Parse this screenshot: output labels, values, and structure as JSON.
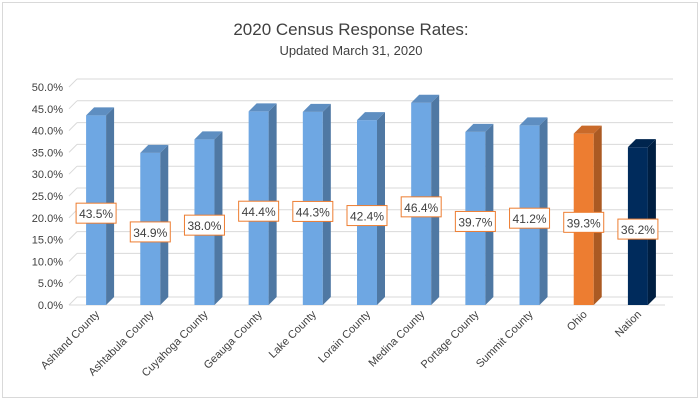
{
  "chart_data": {
    "type": "bar",
    "title": "2020 Census Response Rates:",
    "subtitle": "Updated March 31, 2020",
    "categories": [
      "Ashland County",
      "Ashtabula County",
      "Cuyahoga County",
      "Geauga County",
      "Lake County",
      "Lorain County",
      "Medina County",
      "Portage County",
      "Summit County",
      "Ohio",
      "Nation"
    ],
    "values": [
      43.5,
      34.9,
      38.0,
      44.4,
      44.3,
      42.4,
      46.4,
      39.7,
      41.2,
      39.3,
      36.2
    ],
    "data_labels": [
      "43.5%",
      "34.9%",
      "38.0%",
      "44.4%",
      "44.3%",
      "42.4%",
      "46.4%",
      "39.7%",
      "41.2%",
      "39.3%",
      "36.2%"
    ],
    "ylim": [
      0,
      50
    ],
    "yticks": [
      0,
      5,
      10,
      15,
      20,
      25,
      30,
      35,
      40,
      45,
      50
    ],
    "ytick_labels": [
      "0.0%",
      "5.0%",
      "10.0%",
      "15.0%",
      "20.0%",
      "25.0%",
      "30.0%",
      "35.0%",
      "40.0%",
      "45.0%",
      "50.0%"
    ],
    "xlabel": "",
    "ylabel": "",
    "grid": true,
    "bar_style": "3d-column",
    "colors": [
      "#6ea7e3",
      "#6ea7e3",
      "#6ea7e3",
      "#6ea7e3",
      "#6ea7e3",
      "#6ea7e3",
      "#6ea7e3",
      "#6ea7e3",
      "#6ea7e3",
      "#ed7d31",
      "#002b5c"
    ],
    "label_border_color": "#ed7d31"
  }
}
